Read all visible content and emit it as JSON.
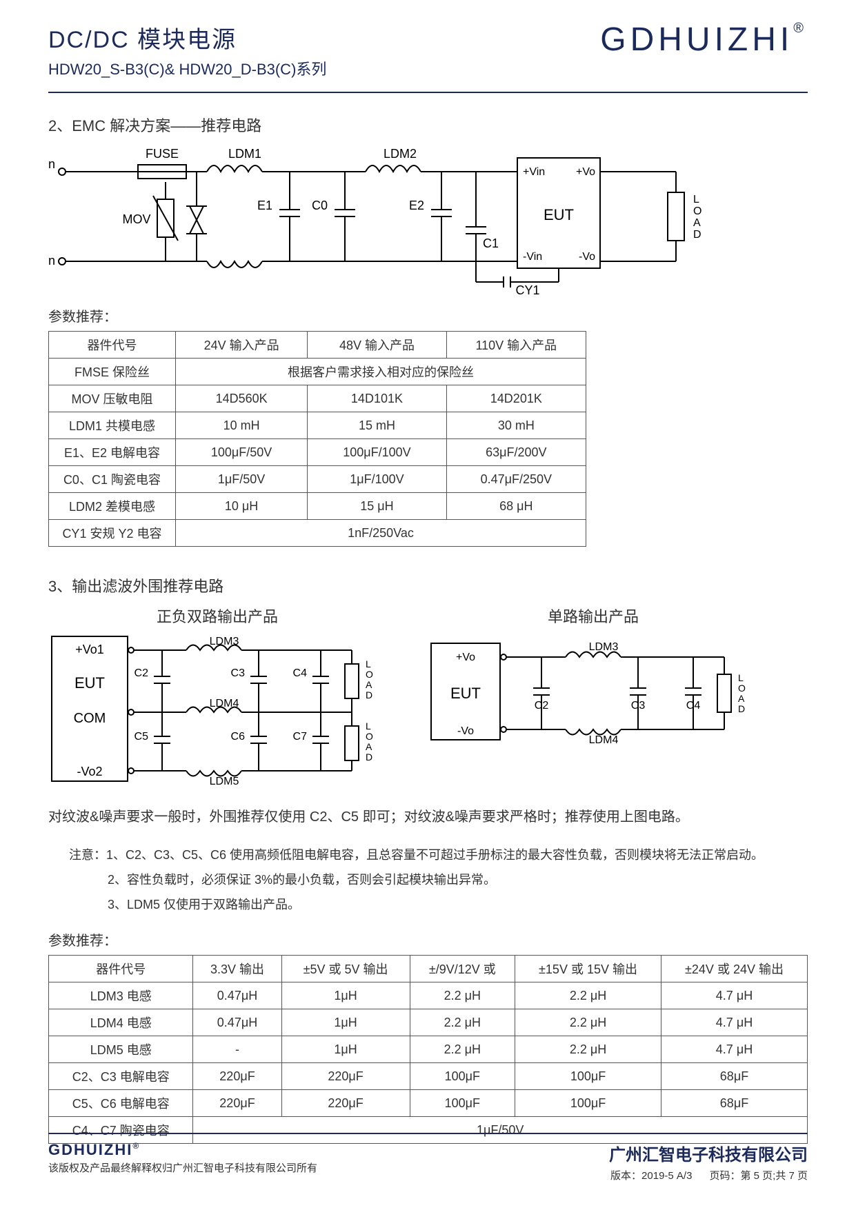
{
  "header": {
    "title1": "DC/DC 模块电源",
    "title2": "HDW20_S-B3(C)& HDW20_D-B3(C)系列",
    "brand": "GDHUIZHI",
    "brand_reg": "®"
  },
  "section2": {
    "title": "2、EMC 解决方案——推荐电路",
    "circuit": {
      "labels": {
        "vin_p": "+Vin",
        "vin_n": "-Vin",
        "fuse": "FUSE",
        "mov": "MOV",
        "ldm1": "LDM1",
        "ldm2": "LDM2",
        "e1": "E1",
        "c0": "C0",
        "e2": "E2",
        "c1": "C1",
        "cy1": "CY1",
        "eut": "EUT",
        "eut_vin_p": "+Vin",
        "eut_vin_n": "-Vin",
        "eut_vo_p": "+Vo",
        "eut_vo_n": "-Vo",
        "load": "LOAD"
      }
    },
    "rec_title": "参数推荐：",
    "table": {
      "columns": [
        "器件代号",
        "24V 输入产品",
        "48V 输入产品",
        "110V 输入产品"
      ],
      "rows": [
        {
          "r": [
            "FMSE 保险丝",
            "根据客户需求接入相对应的保险丝"
          ],
          "span": 3
        },
        {
          "r": [
            "MOV 压敏电阻",
            "14D560K",
            "14D101K",
            "14D201K"
          ]
        },
        {
          "r": [
            "LDM1 共模电感",
            "10 mH",
            "15 mH",
            "30 mH"
          ]
        },
        {
          "r": [
            "E1、E2 电解电容",
            "100μF/50V",
            "100μF/100V",
            "63μF/200V"
          ]
        },
        {
          "r": [
            "C0、C1 陶瓷电容",
            "1μF/50V",
            "1μF/100V",
            "0.47μF/250V"
          ]
        },
        {
          "r": [
            "LDM2 差模电感",
            "10 μH",
            "15 μH",
            "68 μH"
          ]
        },
        {
          "r": [
            "CY1 安规 Y2 电容",
            "1nF/250Vac"
          ],
          "span": 3
        }
      ],
      "col_widths": [
        "190px",
        "190px",
        "200px",
        "200px"
      ]
    }
  },
  "section3": {
    "title": "3、输出滤波外围推荐电路",
    "dual_label": "正负双路输出产品",
    "single_label": "单路输出产品",
    "dual": {
      "eut": "EUT",
      "com": "COM",
      "vo1": "+Vo1",
      "vo2": "-Vo2",
      "ldm3": "LDM3",
      "ldm4": "LDM4",
      "ldm5": "LDM5",
      "c2": "C2",
      "c3": "C3",
      "c4": "C4",
      "c5": "C5",
      "c6": "C6",
      "c7": "C7",
      "load": "LOAD"
    },
    "single": {
      "eut": "EUT",
      "vo_p": "+Vo",
      "vo_n": "-Vo",
      "ldm3": "LDM3",
      "ldm4": "LDM4",
      "c2": "C2",
      "c3": "C3",
      "c4": "C4",
      "load": "LOAD"
    },
    "bodytext": "对纹波&噪声要求一般时，外围推荐仅使用 C2、C5 即可；对纹波&噪声要求严格时；推荐使用上图电路。",
    "notes_label": "注意：",
    "notes": [
      "1、C2、C3、C5、C6 使用高频低阻电解电容，且总容量不可超过手册标注的最大容性负载，否则模块将无法正常启动。",
      "2、容性负载时，必须保证 3%的最小负载，否则会引起模块输出异常。",
      "3、LDM5 仅使用于双路输出产品。"
    ],
    "rec_title": "参数推荐：",
    "table": {
      "columns": [
        "器件代号",
        "3.3V 输出",
        "±5V 或 5V 输出",
        "±/9V/12V 或",
        "±15V 或 15V 输出",
        "±24V 或 24V 输出"
      ],
      "rows": [
        {
          "r": [
            "LDM3 电感",
            "0.47μH",
            "1μH",
            "2.2 μH",
            "2.2 μH",
            "4.7 μH"
          ]
        },
        {
          "r": [
            "LDM4 电感",
            "0.47μH",
            "1μH",
            "2.2 μH",
            "2.2 μH",
            "4.7 μH"
          ]
        },
        {
          "r": [
            "LDM5 电感",
            "-",
            "1μH",
            "2.2 μH",
            "2.2 μH",
            "4.7 μH"
          ]
        },
        {
          "r": [
            "C2、C3 电解电容",
            "220μF",
            "220μF",
            "100μF",
            "100μF",
            "68μF"
          ]
        },
        {
          "r": [
            "C5、C6 电解电容",
            "220μF",
            "220μF",
            "100μF",
            "100μF",
            "68μF"
          ]
        },
        {
          "r": [
            "C4、C7 陶瓷电容",
            "1μF/50V"
          ],
          "span": 5
        }
      ]
    }
  },
  "footer": {
    "brand": "GDHUIZHI",
    "brand_reg": "®",
    "copyright": "该版权及产品最终解释权归广州汇智电子科技有限公司所有",
    "company": "广州汇智电子科技有限公司",
    "version_label": "版本：",
    "version": "2019-5 A/3",
    "page_label": "页码：",
    "page": "第 5 页;共 7 页"
  },
  "colors": {
    "brand": "#1b2a5a",
    "line": "#000000",
    "border": "#555555",
    "text": "#333333"
  }
}
